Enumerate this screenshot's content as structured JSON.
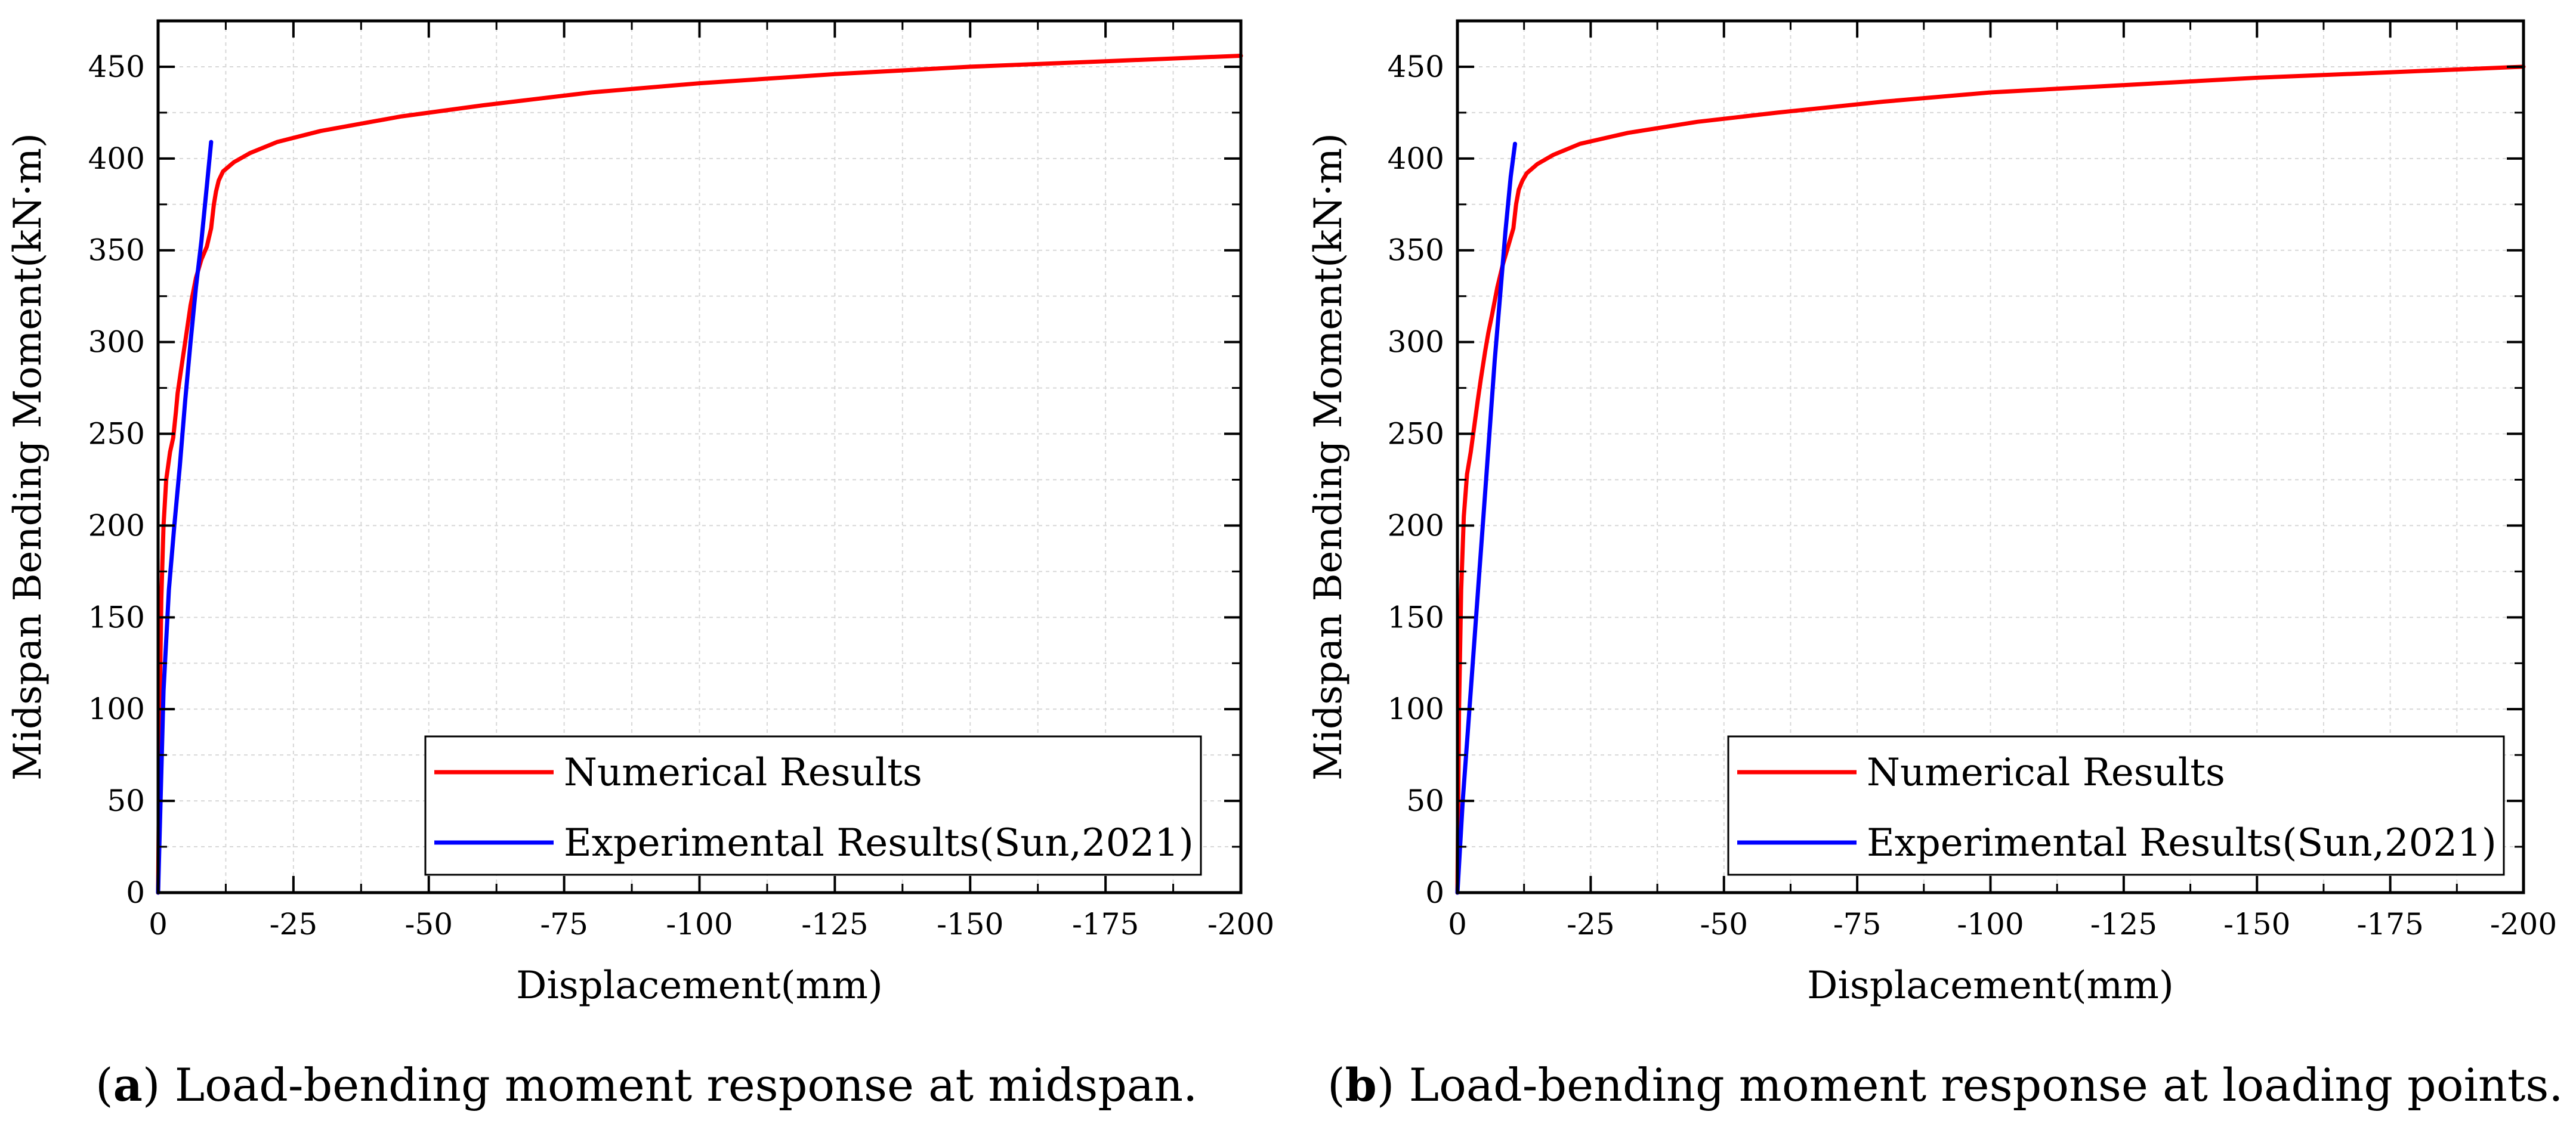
{
  "colors": {
    "numerical": "#ff0000",
    "experimental": "#0000ff",
    "grid": "#d8d8d8",
    "axis": "#000000"
  },
  "captions": [
    {
      "letter": "a",
      "text": ") Load-bending moment response at midspan."
    },
    {
      "letter": "b",
      "text": ") Load-bending moment response at loading points."
    }
  ],
  "chart_data": [
    {
      "type": "line",
      "title": "",
      "xlabel": "Displacement(mm)",
      "ylabel": "Midspan Bending Moment(kN·m)",
      "xlim": [
        0,
        -200
      ],
      "ylim": [
        0,
        475
      ],
      "xticks": [
        0,
        -25,
        -50,
        -75,
        -100,
        -125,
        -150,
        -175,
        -200
      ],
      "yticks": [
        0,
        50,
        100,
        150,
        200,
        250,
        300,
        350,
        400,
        450
      ],
      "grid": true,
      "legend_position": "bottom-right",
      "series": [
        {
          "name": "Numerical Results",
          "color": "#ff0000",
          "x": [
            0,
            -0.3,
            -0.6,
            -1,
            -1.5,
            -2.2,
            -2.8,
            -3.3,
            -3.6,
            -4.2,
            -5,
            -5.5,
            -6,
            -7,
            -8,
            -9,
            -9.8,
            -10.3,
            -10.7,
            -11.2,
            -12,
            -14,
            -17,
            -22,
            -30,
            -45,
            -60,
            -80,
            -100,
            -125,
            -150,
            -175,
            -200
          ],
          "y": [
            0,
            100,
            160,
            200,
            225,
            240,
            248,
            262,
            272,
            284,
            300,
            310,
            320,
            335,
            345,
            352,
            362,
            375,
            382,
            388,
            393,
            398,
            403,
            409,
            415,
            423,
            429,
            436,
            441,
            446,
            450,
            453,
            456
          ]
        },
        {
          "name": "Experimental Results(Sun,2021)",
          "color": "#0000ff",
          "x": [
            0,
            -1,
            -2,
            -3,
            -4,
            -5,
            -6,
            -7,
            -8,
            -9,
            -9.8
          ],
          "y": [
            0,
            110,
            165,
            200,
            232,
            268,
            300,
            330,
            355,
            385,
            409
          ]
        }
      ]
    },
    {
      "type": "line",
      "title": "",
      "xlabel": "Displacement(mm)",
      "ylabel": "Midspan Bending Moment(kN·m)",
      "xlim": [
        0,
        -200
      ],
      "ylim": [
        0,
        475
      ],
      "xticks": [
        0,
        -25,
        -50,
        -75,
        -100,
        -125,
        -150,
        -175,
        -200
      ],
      "yticks": [
        0,
        50,
        100,
        150,
        200,
        250,
        300,
        350,
        400,
        450
      ],
      "grid": true,
      "legend_position": "bottom-right",
      "series": [
        {
          "name": "Numerical Results",
          "color": "#ff0000",
          "x": [
            0,
            -0.3,
            -0.7,
            -1.2,
            -1.8,
            -2.5,
            -3.2,
            -3.8,
            -4.4,
            -5.2,
            -5.8,
            -6.5,
            -7.5,
            -8.5,
            -9.5,
            -10.5,
            -11,
            -11.5,
            -12.2,
            -13,
            -15,
            -18,
            -23,
            -32,
            -45,
            -60,
            -80,
            -100,
            -125,
            -150,
            -175,
            -200
          ],
          "y": [
            0,
            100,
            165,
            205,
            228,
            240,
            255,
            268,
            280,
            295,
            305,
            315,
            330,
            342,
            352,
            362,
            375,
            383,
            388,
            392,
            397,
            402,
            408,
            414,
            420,
            425,
            431,
            436,
            440,
            444,
            447,
            450
          ]
        },
        {
          "name": "Experimental Results(Sun,2021)",
          "color": "#0000ff",
          "x": [
            0,
            -1,
            -2,
            -3,
            -4,
            -5,
            -6,
            -7,
            -8,
            -9,
            -10,
            -10.8
          ],
          "y": [
            0,
            50,
            90,
            130,
            170,
            210,
            250,
            290,
            325,
            360,
            390,
            408
          ]
        }
      ]
    }
  ]
}
